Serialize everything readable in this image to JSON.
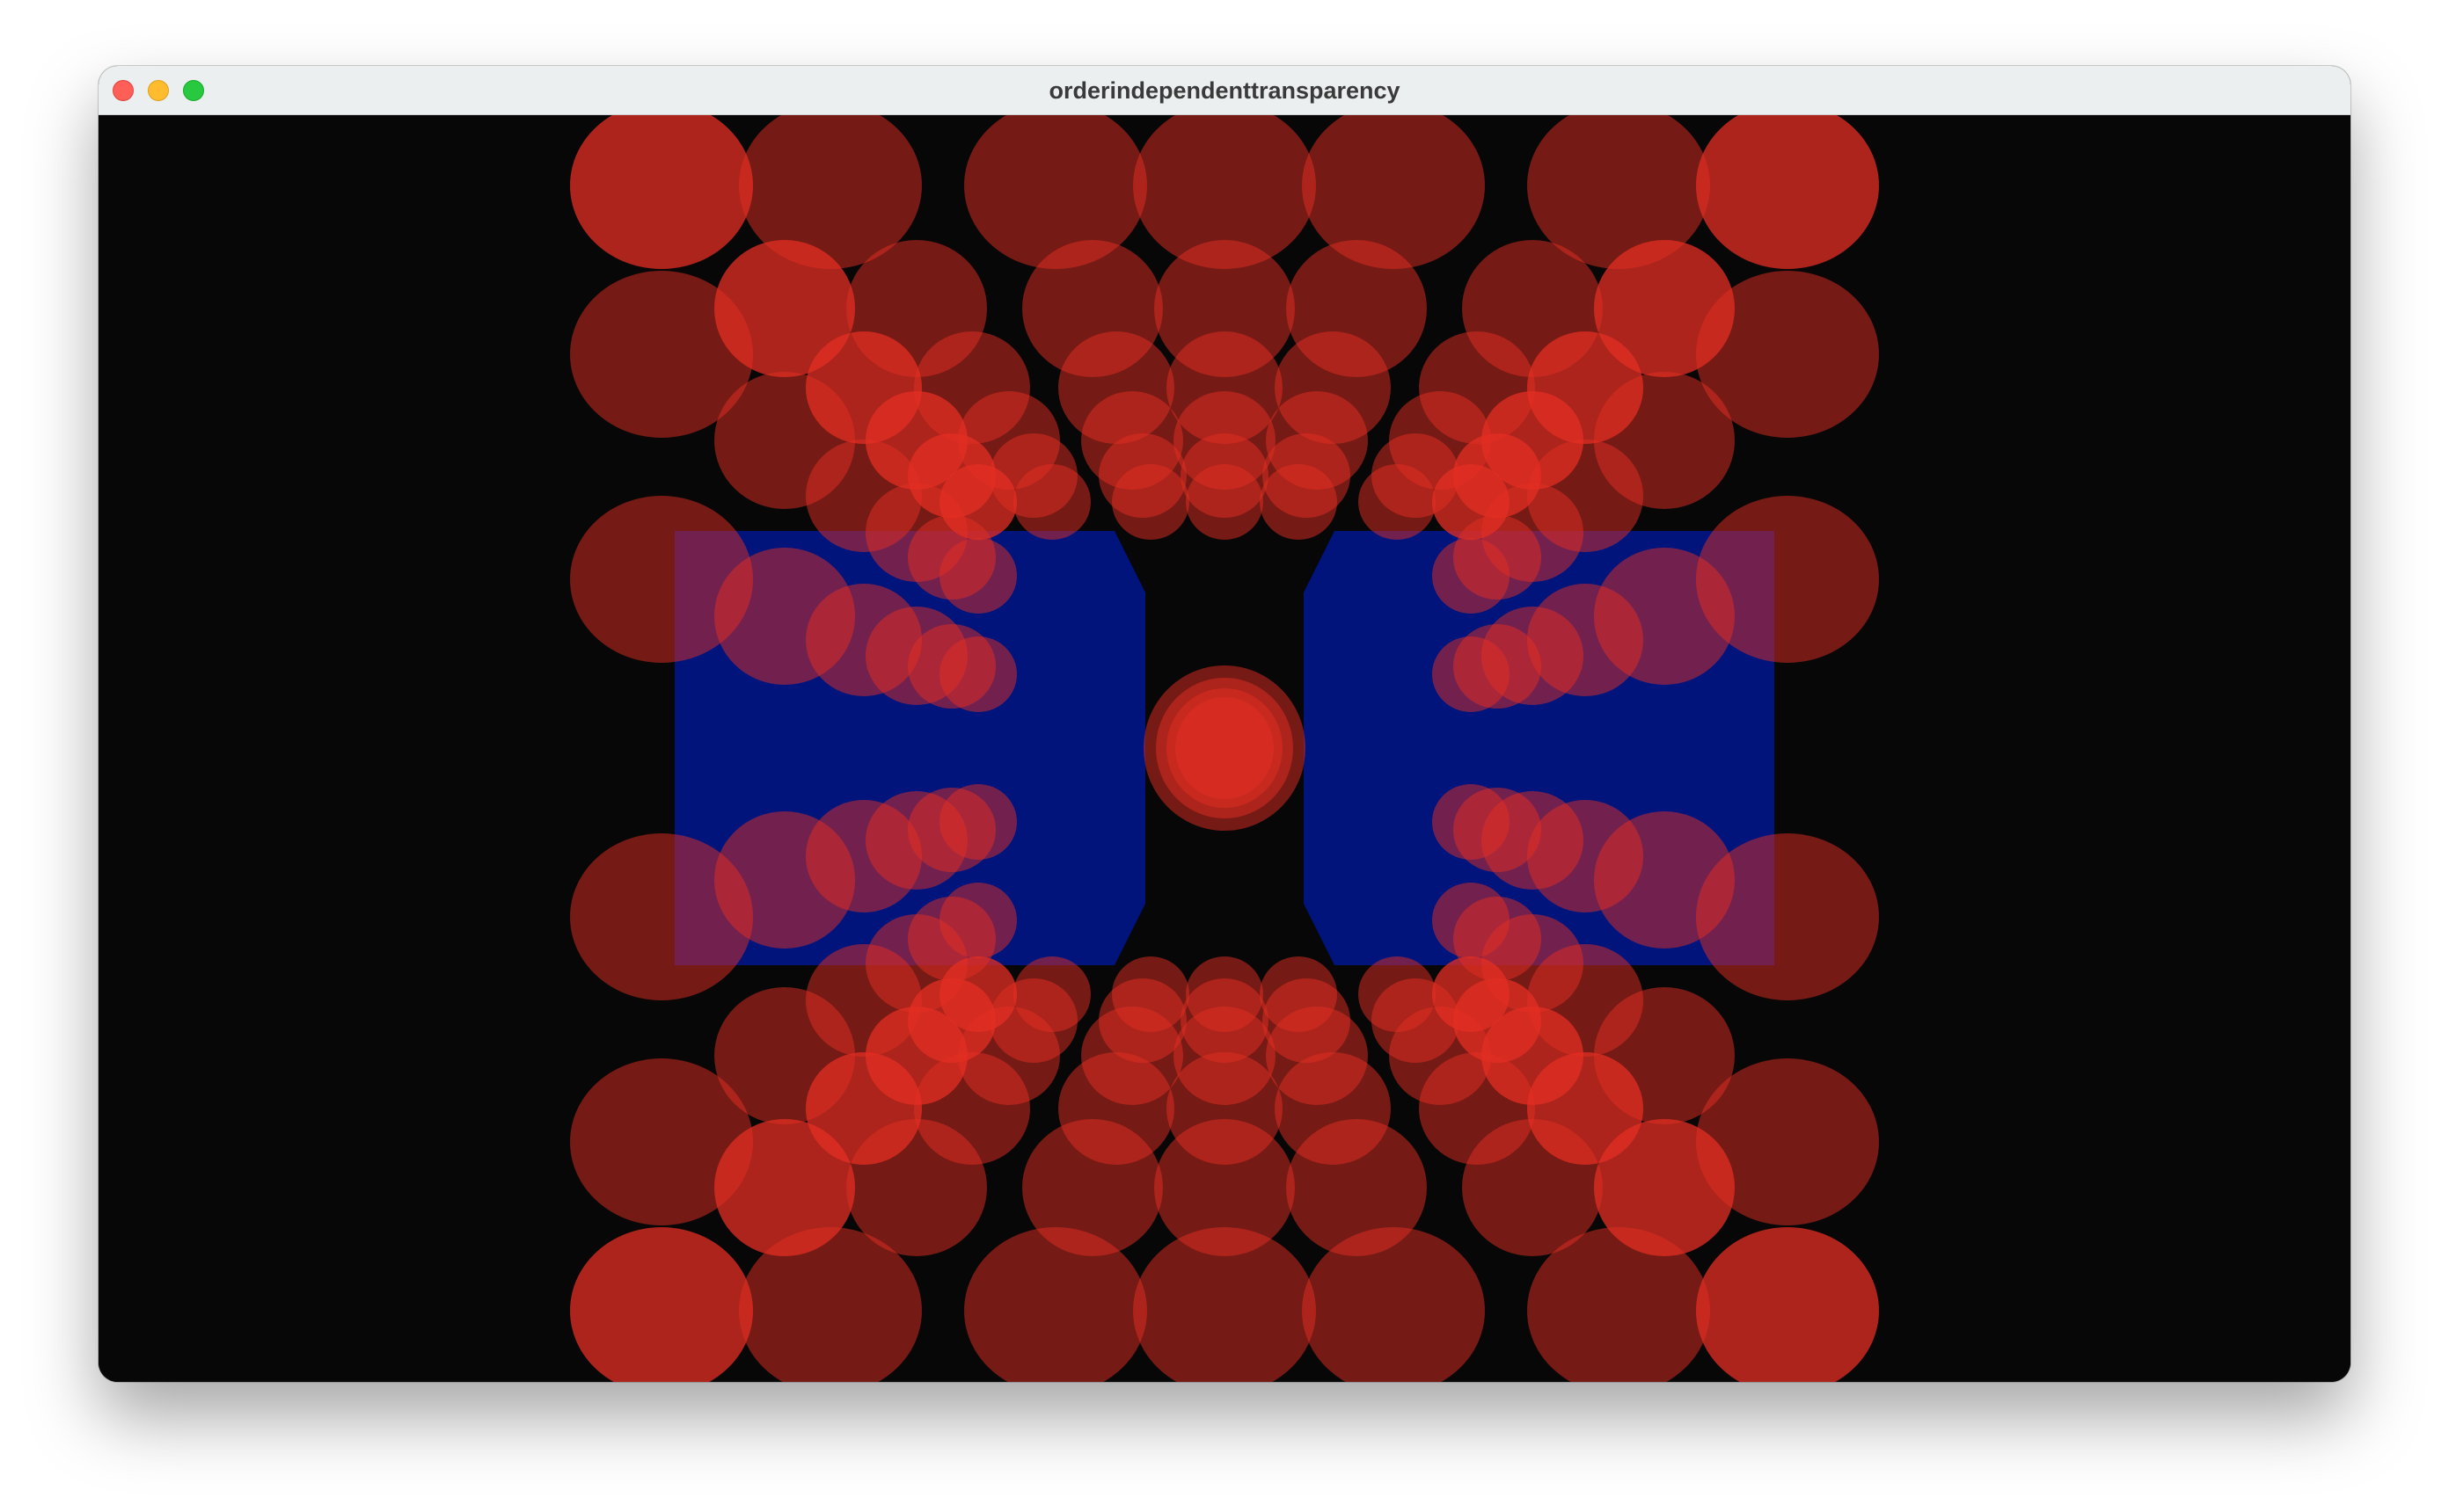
{
  "window": {
    "title": "orderindependenttransparency"
  },
  "scene": {
    "background_color": "#070707",
    "sphere_color": "#e32e22",
    "sphere_opacity": 0.5,
    "panel_color": "#00168a",
    "panel_opacity": 0.9
  }
}
